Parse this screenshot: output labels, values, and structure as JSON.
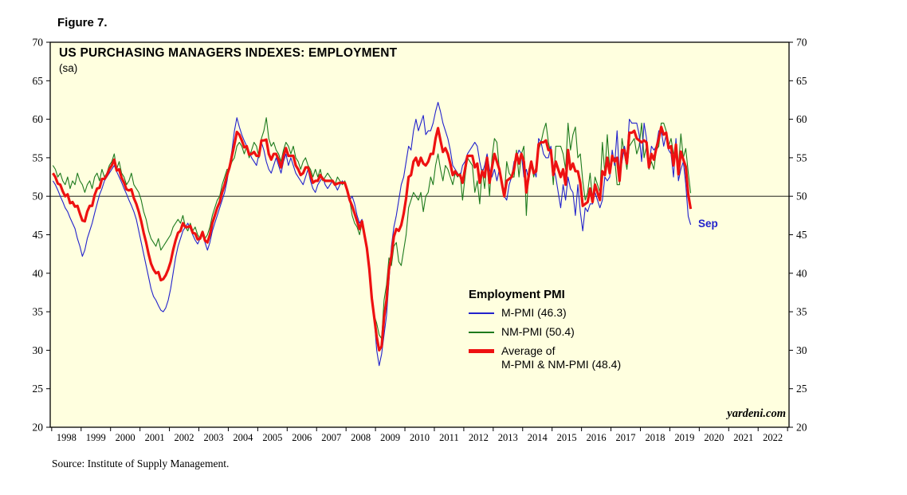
{
  "figure_label": "Figure 7.",
  "chart_title": "US PURCHASING MANAGERS INDEXES: EMPLOYMENT",
  "chart_subtitle": "(sa)",
  "sep_label": "Sep",
  "watermark": "yardeni.com",
  "source": "Source: Institute of Supply Management.",
  "legend": {
    "title": "Employment PMI",
    "items": [
      {
        "label": "M-PMI (46.3)"
      },
      {
        "label": "NM-PMI (50.4)"
      },
      {
        "line1": "Average of",
        "line2": "M-PMI & NM-PMI (48.4)"
      }
    ]
  },
  "chart_data": {
    "type": "line",
    "title": "US PURCHASING MANAGERS INDEXES: EMPLOYMENT",
    "subtitle": "(sa)",
    "background_color": "#FFFFDF",
    "ylim": [
      20,
      70
    ],
    "y_tick_step": 5,
    "reference_line": 50,
    "x_axis_years": [
      1998,
      2023
    ],
    "x_frequency": "monthly",
    "data_start": "1998-01",
    "data_end": "2019-09",
    "last_point_label": "Sep",
    "legend_position": "center-right",
    "grid": false,
    "x_tick_labels": [
      "1998",
      "1999",
      "2000",
      "2001",
      "2002",
      "2003",
      "2004",
      "2005",
      "2006",
      "2007",
      "2008",
      "2009",
      "2010",
      "2011",
      "2012",
      "2013",
      "2014",
      "2015",
      "2016",
      "2017",
      "2018",
      "2019",
      "2020",
      "2021",
      "2022"
    ],
    "series": [
      {
        "name": "M-PMI",
        "latest_value": 46.3,
        "color": "#2222CC",
        "stroke_width": 1.1,
        "values": [
          52.0,
          51.5,
          50.8,
          50.0,
          49.3,
          48.5,
          48.0,
          47.2,
          46.5,
          45.8,
          44.5,
          43.5,
          42.2,
          43.0,
          44.5,
          45.5,
          46.5,
          47.8,
          49.0,
          50.2,
          51.0,
          52.0,
          52.5,
          53.0,
          53.5,
          54.0,
          53.2,
          52.5,
          51.8,
          51.0,
          50.3,
          49.5,
          48.8,
          48.0,
          47.0,
          45.5,
          44.0,
          42.5,
          41.0,
          39.5,
          38.0,
          37.0,
          36.5,
          35.8,
          35.2,
          35.0,
          35.5,
          36.5,
          38.0,
          40.0,
          42.0,
          43.5,
          44.5,
          45.5,
          46.0,
          46.5,
          45.8,
          45.0,
          44.3,
          43.8,
          44.5,
          45.2,
          44.0,
          43.0,
          44.0,
          45.5,
          46.5,
          47.5,
          48.5,
          49.5,
          50.5,
          52.0,
          54.0,
          56.0,
          58.5,
          60.2,
          59.0,
          58.0,
          57.2,
          56.5,
          55.8,
          55.0,
          54.5,
          54.0,
          55.5,
          57.0,
          56.0,
          54.5,
          53.5,
          53.0,
          54.0,
          55.0,
          54.0,
          53.0,
          54.5,
          55.5,
          54.0,
          55.0,
          54.0,
          53.0,
          52.5,
          52.0,
          51.5,
          52.5,
          53.5,
          52.0,
          51.0,
          50.5,
          51.5,
          52.0,
          52.5,
          51.5,
          51.0,
          51.5,
          52.0,
          51.5,
          50.8,
          51.5,
          52.0,
          51.5,
          50.5,
          49.5,
          50.0,
          49.0,
          47.5,
          46.5,
          47.0,
          45.5,
          43.0,
          40.0,
          36.5,
          34.0,
          30.0,
          28.0,
          29.5,
          32.0,
          34.5,
          39.0,
          43.5,
          46.0,
          47.5,
          49.5,
          51.5,
          52.5,
          54.5,
          56.5,
          56.0,
          58.5,
          60.0,
          58.5,
          59.5,
          60.5,
          58.0,
          58.5,
          58.5,
          59.5,
          61.0,
          62.2,
          61.0,
          59.5,
          58.5,
          57.5,
          56.0,
          54.0,
          53.5,
          53.0,
          52.5,
          54.0,
          54.5,
          55.5,
          56.0,
          56.5,
          57.0,
          56.5,
          54.5,
          53.0,
          54.0,
          55.5,
          53.5,
          52.5,
          53.5,
          52.0,
          53.5,
          51.5,
          50.0,
          49.5,
          51.5,
          52.5,
          54.5,
          55.0,
          56.0,
          55.5,
          52.5,
          53.5,
          52.0,
          54.5,
          53.5,
          52.5,
          57.5,
          57.0,
          55.5,
          55.0,
          55.0,
          56.5,
          54.0,
          52.5,
          50.5,
          48.5,
          51.5,
          49.5,
          52.5,
          51.0,
          50.5,
          47.5,
          51.5,
          48.0,
          45.5,
          48.5,
          48.0,
          49.0,
          49.0,
          50.5,
          49.5,
          48.5,
          49.5,
          52.5,
          52.0,
          52.5,
          56.0,
          54.0,
          58.5,
          52.5,
          54.5,
          56.5,
          55.0,
          60.0,
          59.5,
          59.5,
          59.5,
          58.0,
          54.5,
          59.5,
          57.5,
          54.0,
          56.5,
          56.0,
          56.5,
          58.5,
          58.5,
          56.5,
          58.0,
          56.0,
          55.5,
          52.5,
          57.5,
          52.0,
          53.5,
          54.5,
          51.5,
          47.4,
          46.3
        ]
      },
      {
        "name": "NM-PMI",
        "latest_value": 50.4,
        "color": "#1E7A1E",
        "stroke_width": 1.1,
        "values": [
          54.0,
          53.5,
          52.5,
          53.0,
          52.0,
          51.5,
          52.5,
          51.0,
          52.0,
          51.5,
          53.0,
          52.0,
          51.5,
          50.5,
          51.5,
          52.0,
          51.0,
          52.5,
          53.0,
          52.0,
          53.5,
          52.5,
          53.0,
          54.0,
          54.5,
          55.5,
          53.5,
          54.5,
          53.0,
          52.5,
          51.5,
          52.0,
          53.0,
          51.5,
          51.0,
          50.5,
          49.5,
          48.0,
          47.0,
          45.5,
          44.5,
          44.0,
          43.5,
          44.5,
          43.0,
          43.5,
          44.0,
          44.5,
          45.0,
          46.0,
          46.5,
          47.0,
          46.5,
          47.5,
          46.0,
          45.5,
          46.5,
          45.5,
          46.0,
          45.0,
          44.5,
          45.5,
          44.5,
          45.0,
          46.0,
          47.5,
          48.5,
          49.5,
          50.0,
          51.5,
          52.5,
          53.5,
          53.5,
          54.5,
          55.0,
          56.5,
          57.0,
          56.5,
          55.5,
          56.5,
          55.0,
          56.0,
          57.0,
          56.5,
          55.0,
          57.5,
          58.5,
          60.2,
          57.5,
          56.5,
          57.0,
          56.0,
          55.5,
          54.5,
          56.0,
          57.0,
          56.5,
          55.5,
          56.5,
          55.0,
          54.5,
          53.5,
          54.5,
          55.0,
          54.0,
          53.5,
          52.5,
          53.5,
          52.5,
          53.5,
          52.0,
          52.5,
          53.0,
          52.5,
          52.0,
          51.5,
          52.5,
          52.0,
          51.5,
          52.0,
          51.0,
          49.5,
          47.5,
          46.5,
          46.0,
          45.0,
          46.5,
          44.5,
          43.5,
          41.0,
          37.0,
          34.5,
          33.5,
          32.0,
          31.5,
          36.5,
          38.5,
          42.0,
          41.0,
          43.5,
          44.0,
          41.5,
          41.0,
          43.0,
          45.0,
          48.5,
          49.5,
          50.5,
          50.0,
          49.5,
          50.5,
          48.0,
          50.0,
          50.5,
          52.5,
          51.5,
          54.0,
          55.5,
          53.5,
          52.0,
          54.0,
          53.5,
          52.5,
          51.5,
          53.0,
          52.5,
          53.0,
          49.5,
          52.5,
          55.0,
          54.5,
          54.0,
          50.5,
          52.0,
          49.0,
          53.5,
          51.0,
          54.5,
          50.0,
          55.0,
          57.5,
          57.0,
          53.5,
          52.0,
          50.0,
          54.5,
          53.0,
          52.5,
          52.5,
          56.0,
          52.5,
          55.5,
          56.5,
          47.5,
          53.5,
          54.5,
          52.5,
          54.0,
          56.0,
          57.0,
          58.5,
          59.5,
          57.0,
          55.5,
          51.5,
          56.5,
          56.5,
          56.5,
          55.5,
          53.5,
          59.5,
          56.0,
          58.0,
          59.0,
          55.0,
          55.5,
          52.0,
          49.5,
          50.5,
          53.0,
          49.5,
          52.5,
          51.5,
          50.5,
          57.0,
          53.0,
          58.0,
          53.5,
          54.5,
          55.0,
          51.5,
          51.5,
          57.5,
          55.5,
          53.5,
          56.5,
          57.0,
          57.5,
          55.5,
          56.5,
          59.5,
          55.0,
          56.5,
          53.5,
          54.5,
          53.5,
          56.0,
          56.5,
          59.5,
          59.5,
          58.5,
          56.5,
          57.5,
          55.5,
          55.9,
          53.7,
          58.1,
          55.0,
          56.2,
          53.1,
          50.4
        ]
      },
      {
        "name": "Average of M-PMI & NM-PMI",
        "latest_value": 48.4,
        "color": "#EE1111",
        "stroke_width": 3.2,
        "derived": "average of M-PMI and NM-PMI"
      }
    ]
  }
}
